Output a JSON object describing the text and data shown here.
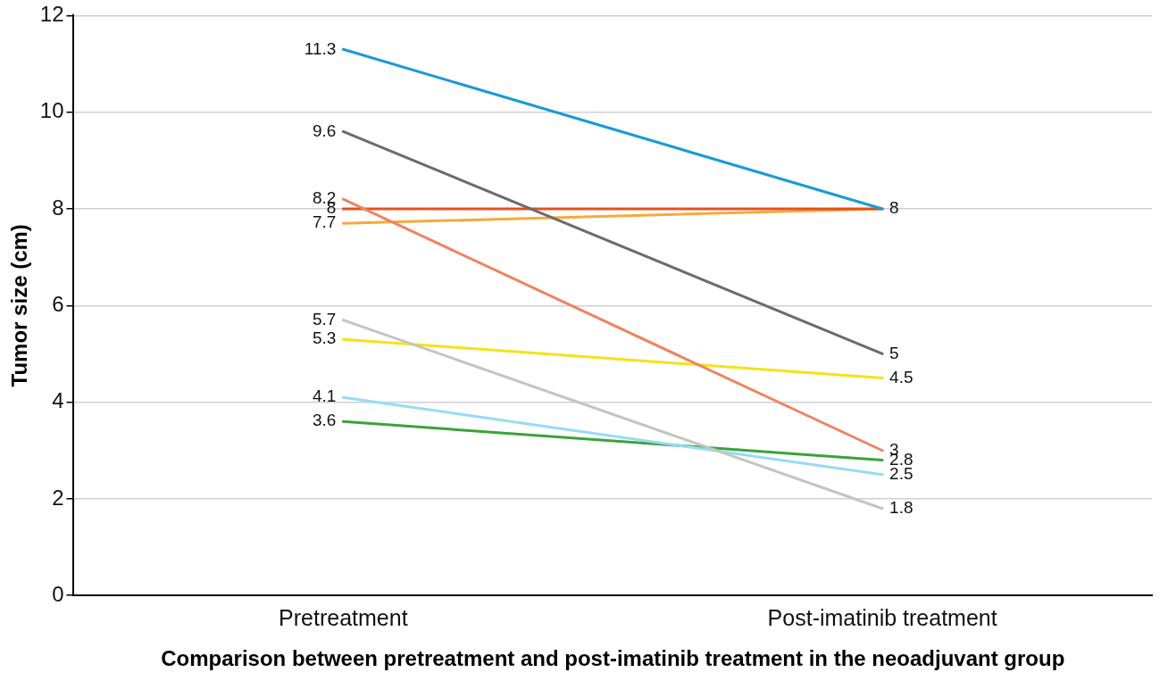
{
  "chart_data": {
    "type": "line",
    "xlabel": "Comparison between pretreatment and post-imatinib treatment in the neoadjuvant group",
    "ylabel": "Tumor size (cm)",
    "categories": [
      "Pretreatment",
      "Post-imatinib treatment"
    ],
    "ylim": [
      0,
      12
    ],
    "yticks": [
      0,
      2,
      4,
      6,
      8,
      10,
      12
    ],
    "grid": "y",
    "legend": false,
    "marker": "none",
    "series": [
      {
        "color": "#1a9ad6",
        "values": [
          11.3,
          8
        ],
        "value_labels": [
          "11.3",
          "8"
        ]
      },
      {
        "color": "#6b6b6b",
        "values": [
          9.6,
          5
        ],
        "value_labels": [
          "9.6",
          "5"
        ]
      },
      {
        "color": "#ee8462",
        "values": [
          8.2,
          3
        ],
        "value_labels": [
          "8.2",
          "3"
        ]
      },
      {
        "color": "#e4501e",
        "values": [
          8,
          8
        ],
        "value_labels": [
          "8",
          null
        ]
      },
      {
        "color": "#f7a93a",
        "values": [
          7.7,
          8
        ],
        "value_labels": [
          "7.7",
          null
        ]
      },
      {
        "color": "#c4c4c4",
        "values": [
          5.7,
          1.8
        ],
        "value_labels": [
          "5.7",
          "1.8"
        ]
      },
      {
        "color": "#f5e21a",
        "values": [
          5.3,
          4.5
        ],
        "value_labels": [
          "5.3",
          "4.5"
        ]
      },
      {
        "color": "#96dcf5",
        "values": [
          4.1,
          2.5
        ],
        "value_labels": [
          "4.1",
          "2.5"
        ]
      },
      {
        "color": "#3aa33a",
        "values": [
          3.6,
          2.8
        ],
        "value_labels": [
          "3.6",
          "2.8"
        ]
      }
    ]
  }
}
